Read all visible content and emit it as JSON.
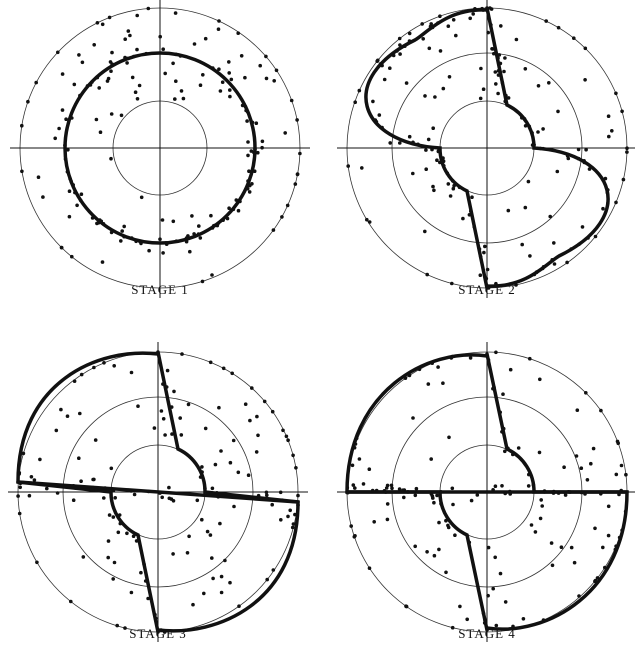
{
  "panels": [
    {
      "caption": "STAGE 1"
    },
    {
      "caption": "STAGE 2"
    },
    {
      "caption": "STAGE 3"
    },
    {
      "caption": "STAGE 4"
    }
  ]
}
